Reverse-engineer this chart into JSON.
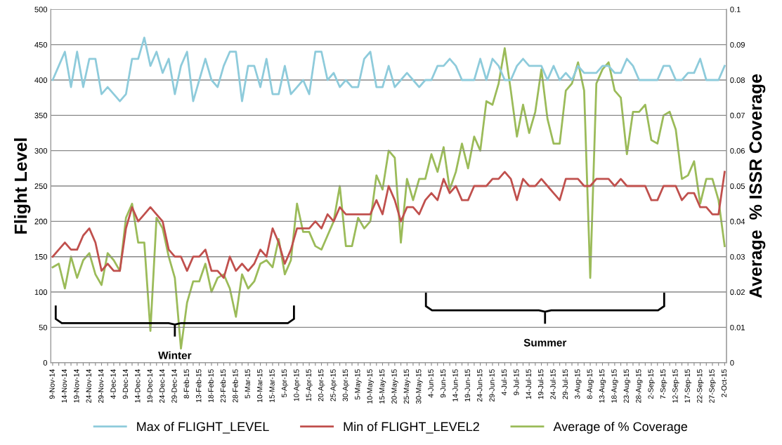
{
  "chart_data": {
    "type": "line",
    "categories": [
      "9-Nov-14",
      null,
      "14-Nov-14",
      null,
      "19-Nov-14",
      null,
      "24-Nov-14",
      null,
      "29-Nov-14",
      null,
      "4-Dec-14",
      null,
      "9-Dec-14",
      null,
      "14-Dec-14",
      null,
      "19-Dec-14",
      null,
      "24-Dec-14",
      null,
      "29-Dec-14",
      null,
      "8-Feb-15",
      null,
      "13-Feb-15",
      null,
      "18-Feb-15",
      null,
      "23-Feb-15",
      null,
      "28-Feb-15",
      null,
      "5-Mar-15",
      null,
      "10-Mar-15",
      null,
      "15-Mar-15",
      null,
      "5-Apr-15",
      null,
      "10-Apr-15",
      null,
      "15-Apr-15",
      null,
      "20-Apr-15",
      null,
      "25-Apr-15",
      null,
      "30-Apr-15",
      null,
      "5-May-15",
      null,
      "10-May-15",
      null,
      "15-May-15",
      null,
      "20-May-15",
      null,
      "25-May-15",
      null,
      "30-May-15",
      null,
      "4-Jun-15",
      null,
      "9-Jun-15",
      null,
      "14-Jun-15",
      null,
      "19-Jun-15",
      null,
      "24-Jun-15",
      null,
      "29-Jun-15",
      null,
      "4-Jul-15",
      null,
      "9-Jul-15",
      null,
      "14-Jul-15",
      null,
      "19-Jul-15",
      null,
      "24-Jul-15",
      null,
      "29-Jul-15",
      null,
      "3-Aug-15",
      null,
      "8-Aug-15",
      null,
      "13-Aug-15",
      null,
      "18-Aug-15",
      null,
      "23-Aug-15",
      null,
      "28-Aug-15",
      null,
      "2-Sep-15",
      null,
      "7-Sep-15",
      null,
      "12-Sep-15",
      null,
      "17-Sep-15",
      null,
      "22-Sep-15",
      null,
      "27-Sep-15",
      null,
      "2-Oct-15"
    ],
    "series": [
      {
        "name": "Max of FLIGHT_LEVEL",
        "color": "#8ecbdb",
        "values": [
          400,
          420,
          440,
          390,
          440,
          390,
          430,
          430,
          380,
          390,
          380,
          370,
          380,
          430,
          430,
          460,
          420,
          440,
          410,
          430,
          380,
          420,
          440,
          370,
          400,
          430,
          400,
          390,
          420,
          440,
          440,
          370,
          420,
          420,
          390,
          430,
          380,
          380,
          420,
          380,
          390,
          400,
          380,
          440,
          440,
          400,
          410,
          390,
          400,
          390,
          390,
          430,
          440,
          390,
          390,
          420,
          390,
          400,
          410,
          400,
          390,
          400,
          400,
          420,
          420,
          430,
          420,
          400,
          400,
          400,
          430,
          400,
          430,
          420,
          400,
          400,
          420,
          430,
          420,
          420,
          420,
          400,
          420,
          400,
          410,
          400,
          420,
          410,
          410,
          410,
          420,
          420,
          410,
          410,
          430,
          420,
          400,
          400,
          400,
          400,
          420,
          420,
          400,
          400,
          410,
          410,
          430,
          400,
          400,
          400,
          420
        ]
      },
      {
        "name": "Min of FLIGHT_LEVEL2",
        "color": "#c0504d",
        "values": [
          150,
          160,
          170,
          160,
          160,
          180,
          190,
          170,
          130,
          140,
          130,
          130,
          190,
          220,
          200,
          210,
          220,
          210,
          200,
          160,
          150,
          150,
          130,
          150,
          150,
          160,
          130,
          130,
          120,
          150,
          130,
          140,
          130,
          140,
          160,
          150,
          190,
          170,
          140,
          160,
          190,
          190,
          190,
          200,
          190,
          210,
          200,
          220,
          210,
          210,
          210,
          210,
          210,
          230,
          210,
          250,
          230,
          200,
          220,
          220,
          210,
          230,
          240,
          230,
          260,
          240,
          250,
          230,
          230,
          250,
          250,
          250,
          260,
          260,
          270,
          260,
          230,
          260,
          250,
          250,
          260,
          250,
          240,
          230,
          260,
          260,
          260,
          250,
          250,
          260,
          260,
          260,
          250,
          260,
          250,
          250,
          250,
          250,
          230,
          230,
          250,
          250,
          250,
          230,
          240,
          240,
          220,
          220,
          210,
          210,
          270
        ]
      },
      {
        "name": "Average of % Coverage",
        "color": "#9bbb59",
        "axis": "y2",
        "values": [
          0.027,
          0.028,
          0.021,
          0.03,
          0.024,
          0.029,
          0.031,
          0.025,
          0.022,
          0.031,
          0.029,
          0.026,
          0.041,
          0.045,
          0.034,
          0.034,
          0.009,
          0.041,
          0.038,
          0.03,
          0.024,
          0.004,
          0.017,
          0.023,
          0.023,
          0.028,
          0.02,
          0.024,
          0.025,
          0.021,
          0.013,
          0.025,
          0.021,
          0.023,
          0.028,
          0.029,
          0.027,
          0.035,
          0.025,
          0.029,
          0.045,
          0.037,
          0.037,
          0.033,
          0.032,
          0.036,
          0.04,
          0.05,
          0.033,
          0.033,
          0.041,
          0.038,
          0.04,
          0.053,
          0.049,
          0.06,
          0.058,
          0.034,
          0.052,
          0.046,
          0.052,
          0.052,
          0.059,
          0.054,
          0.061,
          0.049,
          0.054,
          0.062,
          0.055,
          0.064,
          0.06,
          0.074,
          0.073,
          0.079,
          0.089,
          0.077,
          0.064,
          0.073,
          0.065,
          0.071,
          0.083,
          0.069,
          0.062,
          0.062,
          0.077,
          0.079,
          0.085,
          0.077,
          0.024,
          0.079,
          0.083,
          0.085,
          0.077,
          0.075,
          0.059,
          0.071,
          0.071,
          0.073,
          0.063,
          0.062,
          0.07,
          0.071,
          0.066,
          0.052,
          0.053,
          0.057,
          0.045,
          0.052,
          0.052,
          0.046,
          0.033
        ]
      }
    ],
    "ylabel": "Flight Level",
    "y2label": "Average  % ISSR Coverage",
    "ylim": [
      0,
      500
    ],
    "yticks": [
      0,
      50,
      100,
      150,
      200,
      250,
      300,
      350,
      400,
      450,
      500
    ],
    "y2lim": [
      0,
      0.1
    ],
    "y2ticks": [
      0,
      0.01,
      0.02,
      0.03,
      0.04,
      0.05,
      0.06,
      0.07,
      0.08,
      0.09,
      0.1
    ],
    "grid": "y",
    "legend": "bottom",
    "annotations": [
      "Winter",
      "Summer"
    ]
  }
}
